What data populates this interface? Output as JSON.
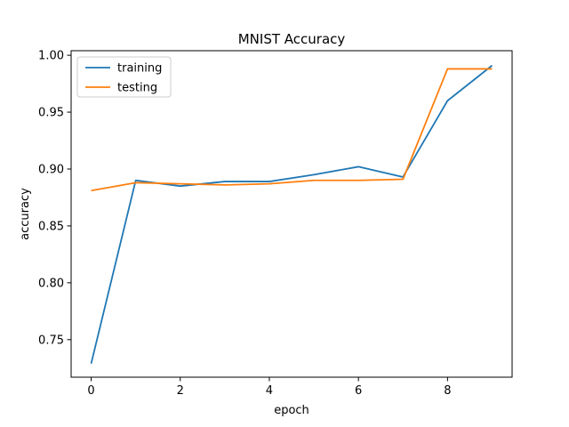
{
  "chart_data": {
    "type": "line",
    "title": "MNIST Accuracy",
    "xlabel": "epoch",
    "ylabel": "accuracy",
    "xlim": [
      -0.45,
      9.45
    ],
    "ylim": [
      0.717,
      1.004
    ],
    "xticks": [
      0,
      2,
      4,
      6,
      8
    ],
    "yticks": [
      0.75,
      0.8,
      0.85,
      0.9,
      0.95,
      1.0
    ],
    "xtick_labels": [
      "0",
      "2",
      "4",
      "6",
      "8"
    ],
    "ytick_labels": [
      "0.75",
      "0.80",
      "0.85",
      "0.90",
      "0.95",
      "1.00"
    ],
    "grid": false,
    "legend_position": "top-left",
    "x": [
      0,
      1,
      2,
      3,
      4,
      5,
      6,
      7,
      8,
      9
    ],
    "series": [
      {
        "name": "training",
        "color": "#1f77b4",
        "values": [
          0.729,
          0.89,
          0.885,
          0.889,
          0.889,
          0.895,
          0.902,
          0.893,
          0.96,
          0.991
        ]
      },
      {
        "name": "testing",
        "color": "#ff7f0e",
        "values": [
          0.881,
          0.888,
          0.887,
          0.886,
          0.887,
          0.89,
          0.89,
          0.891,
          0.988,
          0.988
        ]
      }
    ]
  }
}
